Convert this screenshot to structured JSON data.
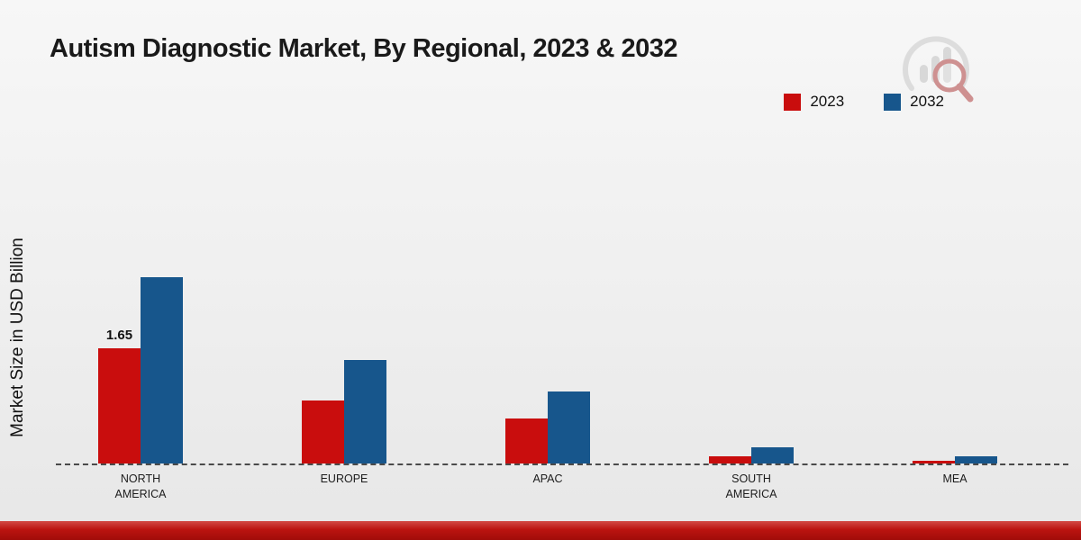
{
  "chart_data": {
    "type": "bar",
    "title": "Autism Diagnostic Market, By Regional, 2023 & 2032",
    "ylabel": "Market Size in USD Billion",
    "xlabel": "",
    "categories": [
      "NORTH AMERICA",
      "EUROPE",
      "APAC",
      "SOUTH AMERICA",
      "MEA"
    ],
    "series": [
      {
        "name": "2023",
        "color": "#c90d0d",
        "values": [
          1.65,
          0.9,
          0.64,
          0.1,
          0.04
        ]
      },
      {
        "name": "2032",
        "color": "#17568c",
        "values": [
          2.67,
          1.48,
          1.03,
          0.23,
          0.1
        ]
      }
    ],
    "data_labels": [
      {
        "series_index": 0,
        "category_index": 0,
        "text": "1.65"
      }
    ],
    "ylim": [
      0,
      3
    ],
    "grid": false,
    "legend_position": "top-right",
    "baseline_style": "dashed"
  },
  "colors": {
    "background_top": "#f7f7f7",
    "background_bottom": "#e7e7e7",
    "footer_band": "#bb1410",
    "axis_line": "#4a4a4a",
    "title_text": "#1a1a1a"
  },
  "logo": {
    "icon": "mrfr-bar-chart-magnifier-logo"
  }
}
